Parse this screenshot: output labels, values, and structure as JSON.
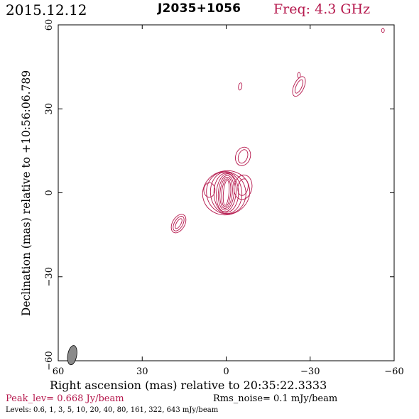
{
  "header": {
    "date": "2015.12.12",
    "source": "J2035+1056",
    "freq": "Freq: 4.3 GHz"
  },
  "footer": {
    "peak": "Peak_lev=  0.668 Jy/beam",
    "rms": "Rms_noise=  0.1 mJy/beam",
    "levels": "Levels: 0.6,   1,   3,   5,  10,  20,  40,  80, 161, 322, 643 mJy/beam"
  },
  "colors": {
    "contour": "#b5174c",
    "axis": "#000000",
    "beam_fill": "#8a8a8a"
  },
  "chart_data": {
    "type": "contour",
    "xlabel": "Right ascension (mas) relative to 20:35:22.3333",
    "ylabel": "Declination (mas) relative to +10:56:06.789",
    "xlim": [
      60,
      -60
    ],
    "ylim": [
      -60,
      60
    ],
    "x_ticks": [
      60,
      30,
      0,
      -30,
      -60
    ],
    "y_ticks": [
      -60,
      -30,
      0,
      30,
      60
    ],
    "x_tick_labels": [
      "60",
      "30",
      "0",
      "−30",
      "−60"
    ],
    "y_tick_labels": [
      "−60",
      "−30",
      "0",
      "30",
      "60"
    ],
    "levels_mJy_per_beam": [
      0.6,
      1,
      3,
      5,
      10,
      20,
      40,
      80,
      161,
      322,
      643
    ],
    "peak_Jy_per_beam": 0.668,
    "rms_mJy_per_beam": 0.1,
    "beam": {
      "x": 55,
      "y": -58,
      "major": 3.5,
      "minor": 1.6,
      "pa_deg": 10
    },
    "components": [
      {
        "x": 0,
        "y": 0,
        "rings": [
          {
            "a": 1.0,
            "b": 4.5,
            "pa": 5
          },
          {
            "a": 1.6,
            "b": 5.0,
            "pa": 5
          },
          {
            "a": 2.2,
            "b": 5.6,
            "pa": 5
          },
          {
            "a": 2.8,
            "b": 6.2,
            "pa": 5
          },
          {
            "a": 3.5,
            "b": 6.8,
            "pa": 5
          },
          {
            "a": 4.4,
            "b": 7.0,
            "pa": 0
          },
          {
            "a": 5.6,
            "b": 7.4,
            "pa": -5
          },
          {
            "a": 7.0,
            "b": 7.6,
            "pa": -15
          },
          {
            "a": 8.5,
            "b": 7.8,
            "pa": -20
          }
        ]
      },
      {
        "x": -6,
        "y": 13,
        "rings": [
          {
            "a": 1.6,
            "b": 2.5,
            "pa": 20
          },
          {
            "a": 2.6,
            "b": 3.4,
            "pa": 20
          }
        ]
      },
      {
        "x": -6,
        "y": 2,
        "rings": [
          {
            "a": 1.8,
            "b": 3.0,
            "pa": 10
          },
          {
            "a": 3.2,
            "b": 4.4,
            "pa": 10
          }
        ]
      },
      {
        "x": 17,
        "y": -11,
        "rings": [
          {
            "a": 0.8,
            "b": 2.0,
            "pa": 30
          },
          {
            "a": 1.5,
            "b": 2.9,
            "pa": 30
          },
          {
            "a": 2.2,
            "b": 3.6,
            "pa": 30
          }
        ]
      },
      {
        "x": 6,
        "y": 1,
        "rings": [
          {
            "a": 2.0,
            "b": 2.6,
            "pa": 0
          }
        ]
      },
      {
        "x": -26,
        "y": 38,
        "rings": [
          {
            "a": 1.0,
            "b": 2.6,
            "pa": 25
          },
          {
            "a": 1.8,
            "b": 3.8,
            "pa": 25
          }
        ]
      },
      {
        "x": -26,
        "y": 42,
        "rings": [
          {
            "a": 0.5,
            "b": 1.0,
            "pa": 0
          }
        ]
      },
      {
        "x": -5,
        "y": 38,
        "rings": [
          {
            "a": 0.6,
            "b": 1.3,
            "pa": 10
          }
        ]
      },
      {
        "x": -56,
        "y": 58,
        "rings": [
          {
            "a": 0.5,
            "b": 0.7,
            "pa": 0
          }
        ]
      }
    ]
  }
}
